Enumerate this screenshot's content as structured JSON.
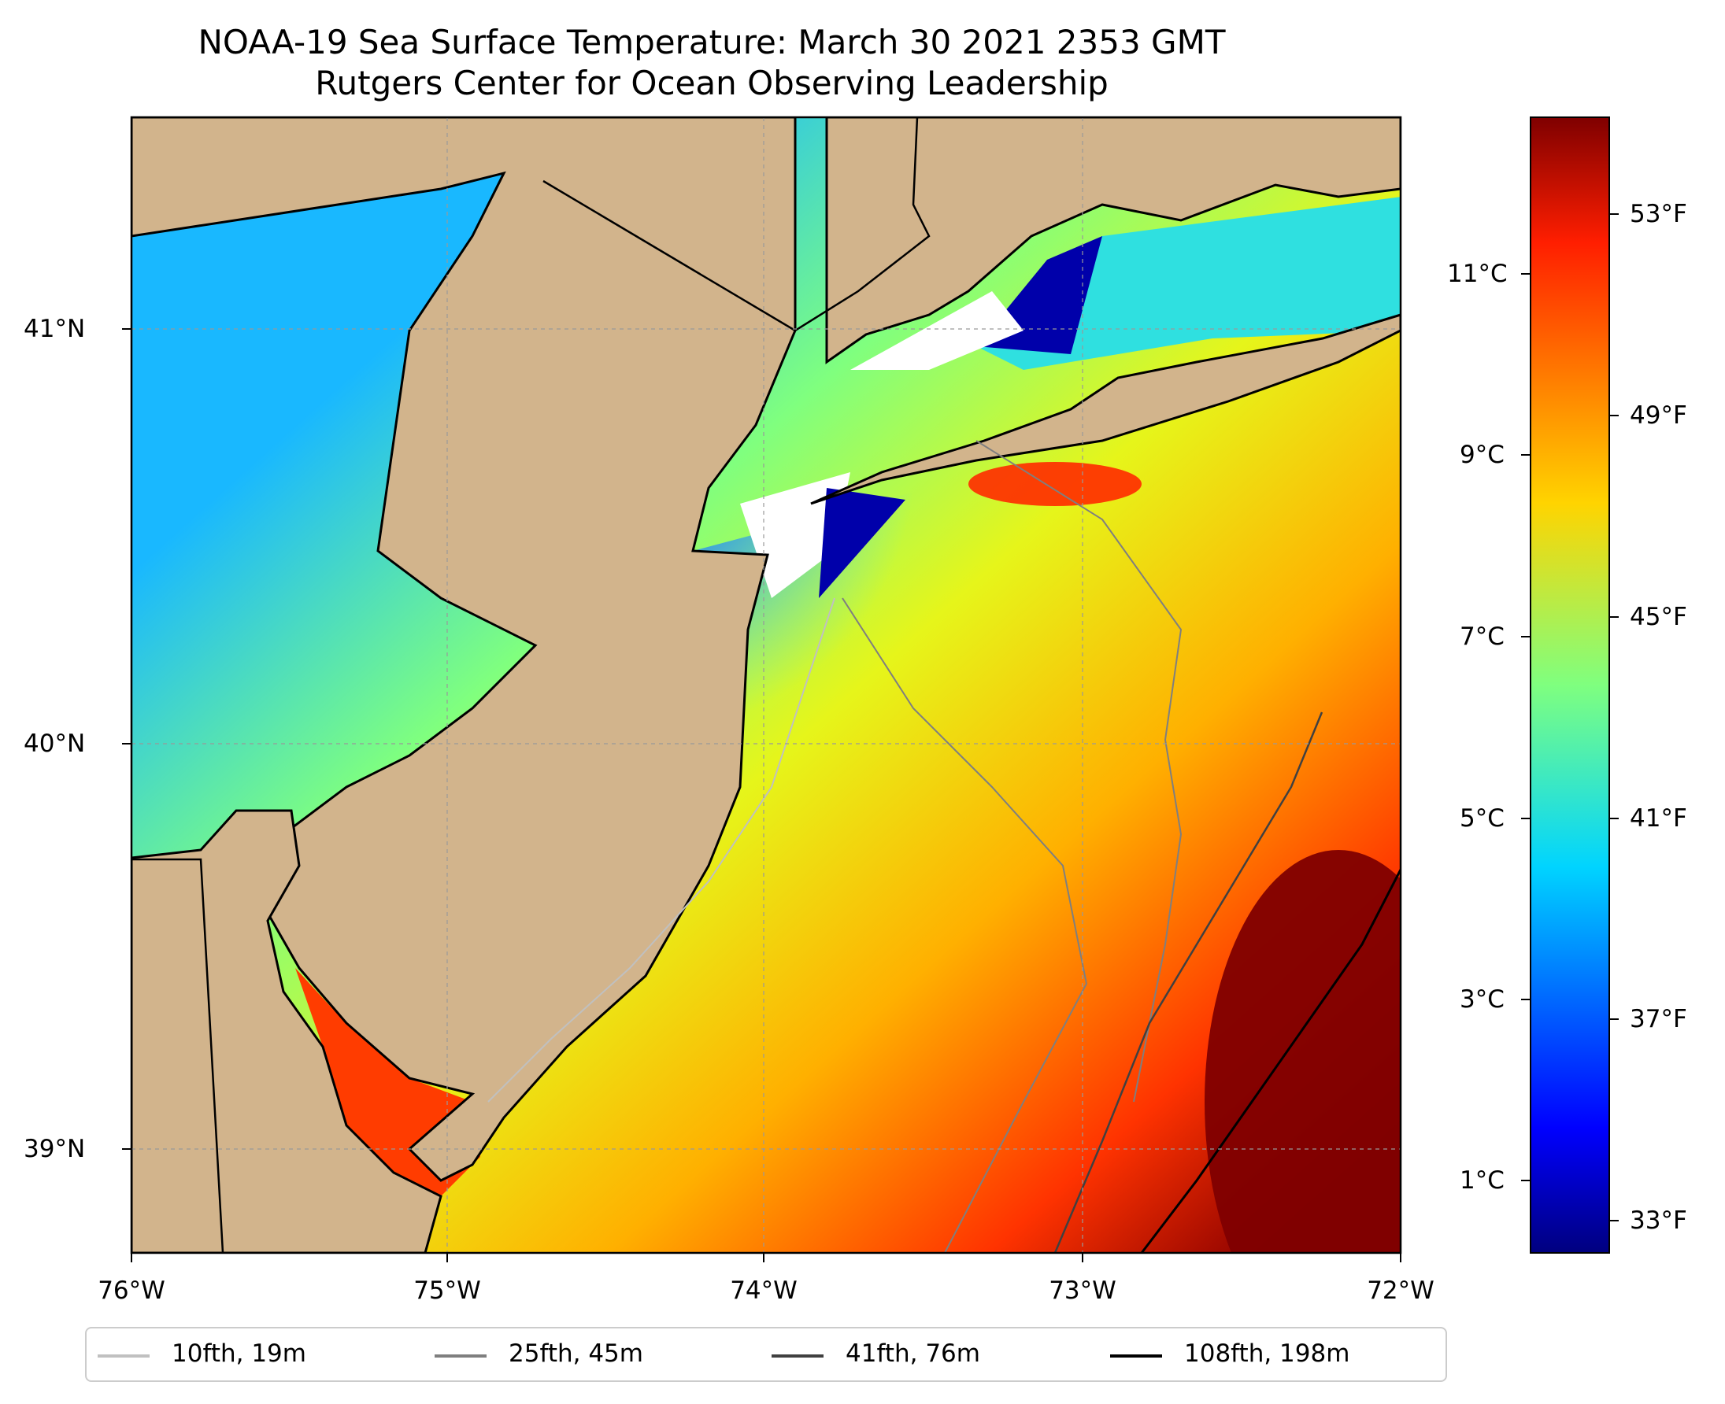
{
  "title_line1": "NOAA-19 Sea Surface Temperature: March 30 2021 2353 GMT",
  "title_line2": "Rutgers Center for Ocean Observing Leadership",
  "x_ticks": [
    "76°W",
    "75°W",
    "74°W",
    "73°W",
    "72°W"
  ],
  "y_ticks": [
    "41°N",
    "40°N",
    "39°N"
  ],
  "colorbar": {
    "celsius_ticks": [
      "11°C",
      "9°C",
      "7°C",
      "5°C",
      "3°C",
      "1°C"
    ],
    "fahrenheit_ticks": [
      "53°F",
      "49°F",
      "45°F",
      "41°F",
      "37°F",
      "33°F"
    ],
    "colormap": "jet"
  },
  "legend": [
    {
      "label": "10fth, 19m",
      "color": "#c0c0c0"
    },
    {
      "label": "25fth, 45m",
      "color": "#7f7f7f"
    },
    {
      "label": "41fth, 76m",
      "color": "#404040"
    },
    {
      "label": "108fth, 198m",
      "color": "#000000"
    }
  ],
  "colors": {
    "land": "#d2b48c",
    "no_data": "#ffffff",
    "grid": "#999999"
  }
}
